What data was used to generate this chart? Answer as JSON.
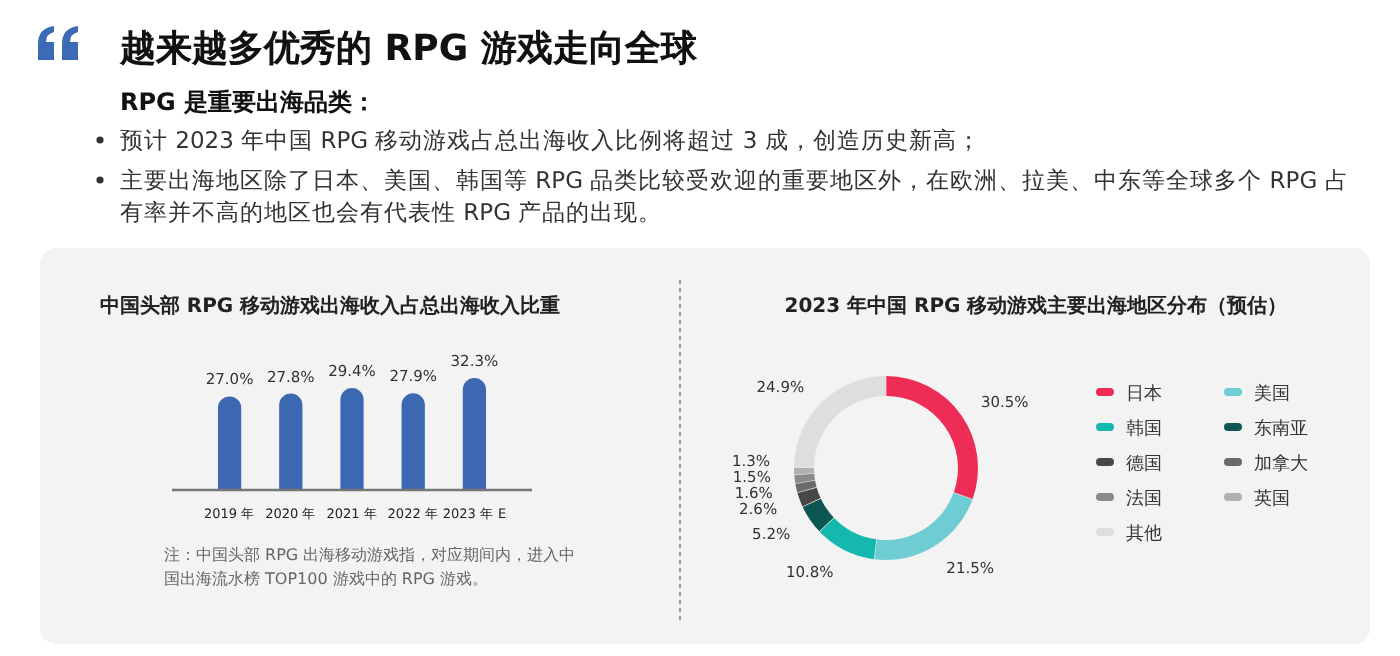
{
  "chart_data": [
    {
      "type": "other",
      "title": "越来越多优秀的 RPG 游戏走向全球",
      "subtitle": "RPG 是重要出海品类：",
      "annotations": [
        "预计 2023 年中国 RPG 移动游戏占总出海收入比例将超过 3 成，创造历史新高；",
        "主要出海地区除了日本、美国、韩国等 RPG 品类比较受欢迎的重要地区外，在欧洲、拉美、中东等全球多个 RPG 占有率并不高的地区也会有代表性 RPG 产品的出现。"
      ]
    },
    {
      "type": "bar",
      "title": "中国头部 RPG 移动游戏出海收入占总出海收入比重",
      "categories": [
        "2019 年",
        "2020 年",
        "2021 年",
        "2022 年",
        "2023 年 E"
      ],
      "values": [
        27.0,
        27.8,
        29.4,
        27.9,
        32.3
      ],
      "color": "#3c67b1",
      "value_labels": [
        "27.0%",
        "27.8%",
        "29.4%",
        "27.9%",
        "32.3%"
      ],
      "annotations": [
        "注：中国头部 RPG 出海移动游戏指，对应期间内，进入中国出海流水榜 TOP100 游戏中的 RPG 游戏。"
      ]
    },
    {
      "type": "donut",
      "title": "2023 年中国 RPG 移动游戏主要出海地区分布（预估）",
      "categories": [
        "日本",
        "美国",
        "韩国",
        "东南亚",
        "德国",
        "加拿大",
        "法国",
        "英国",
        "其他"
      ],
      "values": [
        30.5,
        21.5,
        10.8,
        5.2,
        2.6,
        1.6,
        1.5,
        1.3,
        24.9
      ],
      "colors": [
        "#ee2d57",
        "#6dcdd3",
        "#15b8ad",
        "#0c5753",
        "#474747",
        "#6a6a6a",
        "#8a8a8a",
        "#b0b0b0",
        "#dedede"
      ],
      "value_labels": [
        "30.5%",
        "21.5%",
        "10.8%",
        "5.2%",
        "2.6%",
        "1.6%",
        "1.5%",
        "1.3%",
        "24.9%"
      ],
      "legend": "right"
    }
  ]
}
